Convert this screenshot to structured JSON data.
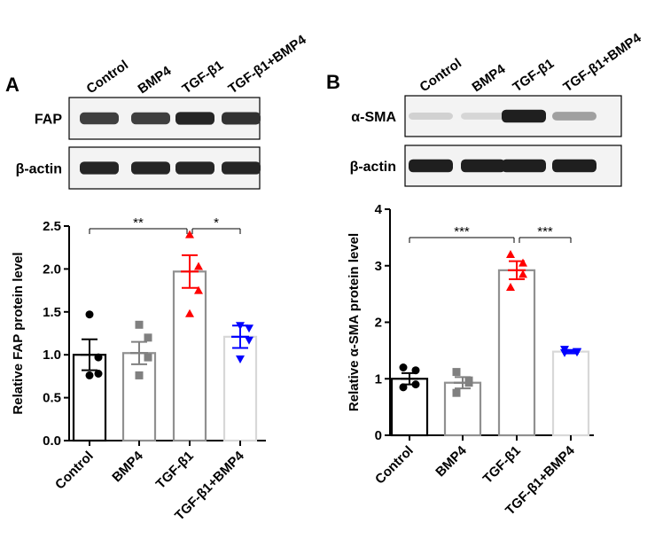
{
  "panels": {
    "A": {
      "letter": "A",
      "blot": {
        "lanes": [
          "Control",
          "BMP4",
          "TGF-β1",
          "TGF-β1+BMP4"
        ],
        "rows": [
          {
            "label": "FAP",
            "band_intensity": [
              0.8,
              0.8,
              0.92,
              0.86
            ]
          },
          {
            "label": "β-actin",
            "band_intensity": [
              0.92,
              0.92,
              0.92,
              0.92
            ]
          }
        ]
      },
      "significance": [
        {
          "from": "Control",
          "to": "TGF-β1",
          "label": "**"
        },
        {
          "from": "TGF-β1",
          "to": "TGF-β1+BMP4",
          "label": "*"
        }
      ]
    },
    "B": {
      "letter": "B",
      "blot": {
        "lanes": [
          "Control",
          "BMP4",
          "TGF-β1",
          "TGF-β1+BMP4"
        ],
        "rows": [
          {
            "label": "α-SMA",
            "band_intensity": [
              0.12,
              0.1,
              0.95,
              0.35
            ]
          },
          {
            "label": "β-actin",
            "band_intensity": [
              0.95,
              0.95,
              0.95,
              0.95
            ]
          }
        ]
      },
      "significance": [
        {
          "from": "Control",
          "to": "TGF-β1",
          "label": "***"
        },
        {
          "from": "TGF-β1",
          "to": "TGF-β1+BMP4",
          "label": "***"
        }
      ]
    }
  },
  "chart_data": [
    {
      "type": "bar",
      "categories": [
        "Control",
        "BMP4",
        "TGF-β1",
        "TGF-β1+BMP4"
      ],
      "values": [
        1.0,
        1.02,
        1.97,
        1.21
      ],
      "errors": [
        0.18,
        0.13,
        0.19,
        0.13
      ],
      "points": [
        [
          1.47,
          0.97,
          0.78,
          0.76
        ],
        [
          1.35,
          1.2,
          0.97,
          0.76
        ],
        [
          2.4,
          2.03,
          1.75,
          1.48
        ],
        [
          1.34,
          1.31,
          1.17,
          0.95
        ]
      ],
      "colors": [
        "#000000",
        "#808080",
        "#ff0000",
        "#0000ff"
      ],
      "markers": [
        "circle",
        "square",
        "triangle-up",
        "triangle-down"
      ],
      "ylabel": "Relative FAP protein level",
      "xlabel": "",
      "ylim": [
        0,
        2.5
      ],
      "yticks": [
        "0.0",
        "0.5",
        "1.0",
        "1.5",
        "2.0",
        "2.5"
      ]
    },
    {
      "type": "bar",
      "categories": [
        "Control",
        "BMP4",
        "TGF-β1",
        "TGF-β1+BMP4"
      ],
      "values": [
        1.0,
        0.93,
        2.92,
        1.48
      ],
      "errors": [
        0.1,
        0.1,
        0.16,
        0.03
      ],
      "points": [
        [
          1.2,
          1.15,
          0.9,
          0.85
        ],
        [
          1.12,
          0.97,
          0.93,
          0.75
        ],
        [
          3.2,
          3.05,
          2.85,
          2.62
        ],
        [
          1.52,
          1.48,
          1.47,
          1.46
        ]
      ],
      "colors": [
        "#000000",
        "#808080",
        "#ff0000",
        "#0000ff"
      ],
      "markers": [
        "circle",
        "square",
        "triangle-up",
        "triangle-down"
      ],
      "ylabel": "Relative α-SMA protein level",
      "xlabel": "",
      "ylim": [
        0,
        4
      ],
      "yticks": [
        "0",
        "1",
        "2",
        "3",
        "4"
      ]
    }
  ]
}
